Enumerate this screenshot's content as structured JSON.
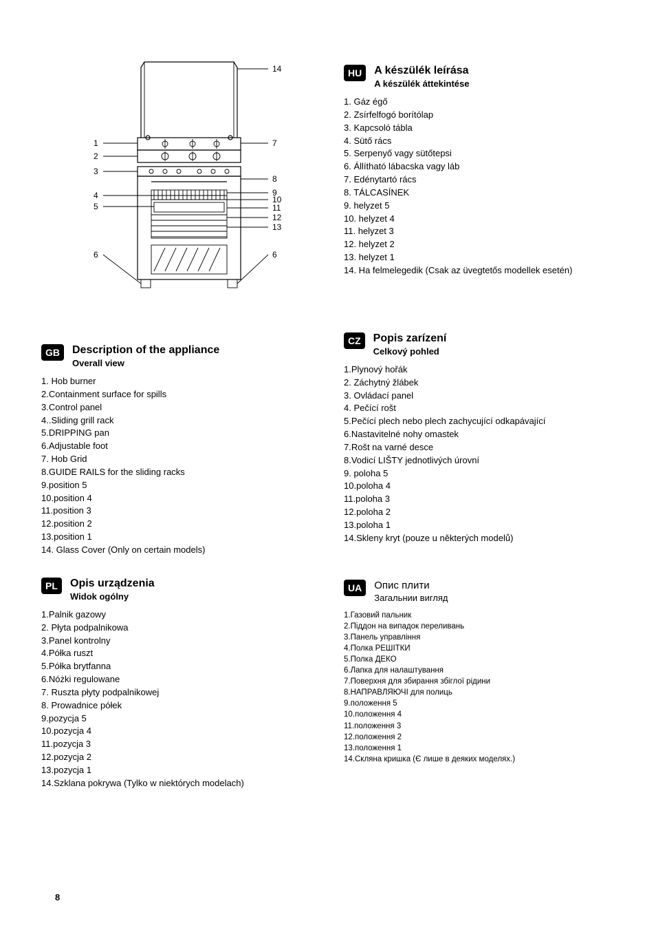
{
  "page_number": "8",
  "diagram": {
    "left_labels": [
      "1",
      "2",
      "3",
      "4",
      "5",
      "6"
    ],
    "right_labels_top": [
      "14"
    ],
    "right_labels": [
      "7",
      "8",
      "9",
      "10",
      "11",
      "12",
      "13",
      "6"
    ],
    "label_font_size": 12
  },
  "blocks": {
    "hu": {
      "badge": "HU",
      "title": "A készülék leírása",
      "subtitle": "A készülék áttekintése",
      "title_bold": true,
      "items": [
        "1. Gáz égő",
        "2. Zsírfelfogó borítólap",
        "3. Kapcsoló tábla",
        "4. Sütő rács",
        "5. Serpenyő vagy sütőtepsi",
        "6. Állítható lábacska vagy láb",
        "7. Edénytartó rács",
        "8. TÁLCASÍNEK",
        "9.  helyzet 5",
        "10. helyzet 4",
        "11. helyzet 3",
        "12.  helyzet 2",
        "13.  helyzet 1",
        "14.  Ha felmelegedik (Csak az üvegtetős modellek esetén)"
      ]
    },
    "gb": {
      "badge": "GB",
      "title": "Description of the appliance",
      "subtitle": "Overall view",
      "title_bold": true,
      "items": [
        "1. Hob burner",
        "2.Containment surface for spills",
        "3.Control panel",
        "4..Sliding grill rack",
        "5.DRIPPING pan",
        "6.Adjustable foot",
        "7. Hob Grid",
        "8.GUIDE RAILS for the sliding racks",
        "9.position 5",
        "10.position 4",
        "11.position 3",
        "12.position 2",
        "13.position 1",
        "14. Glass Cover (Only on certain models)"
      ]
    },
    "cz": {
      "badge": "CZ",
      "title": "Popis zarízení",
      "subtitle": "Celkový pohled",
      "title_bold": true,
      "items": [
        "1.Plynový hořák",
        "2. Záchytný žlábek",
        "3. Ovládací panel",
        "4. Pečící rošt",
        "5.Pečící plech nebo plech zachycující odkapávající",
        "6.Nastavitelné nohy omastek",
        "7.Rošt na varné desce",
        "8.Vodicí LIŠTY jednotlivých úrovní",
        "9. poloha 5",
        "10.poloha 4",
        "11.poloha 3",
        "12.poloha 2",
        "13.poloha 1",
        "14.Skleny kryt (pouze u některých modelů)"
      ]
    },
    "pl": {
      "badge": "PL",
      "title": "Opis urządzenia",
      "subtitle": "Widok ogólny",
      "title_bold": true,
      "items": [
        "1.Palnik gazowy",
        "2. Płyta podpalnikowa",
        "3.Panel kontrolny",
        "4.Półka ruszt",
        "5.Półka brytfanna",
        "6.Nóżki regulowane",
        "7. Ruszta płyty podpalnikowej",
        "8. Prowadnice półek",
        "9.pozycja 5",
        "10.pozycja 4",
        "11.pozycja 3",
        "12.pozycja 2",
        "13.pozycja 1",
        "14.Szklana pokrywa (Tylko w niektórych modelach)"
      ]
    },
    "ua": {
      "badge": "UA",
      "title": "Опис плити",
      "subtitle": "Загальнии вигляд",
      "title_bold": false,
      "small": true,
      "items": [
        "1.Газовий пальник",
        "2.Пiддон на випадок переливань",
        "3.Панель управління",
        "4.Полка РЕШІТКИ",
        "5.Полка ДЕКО",
        "6.Лапка для налаштування",
        "7.Поверхня для збирання збіглої рідини",
        "8.НАПРАВЛЯЮЧІ для полиць",
        "9.положення 5",
        "10.положення 4",
        "11.положення 3",
        "12.положення 2",
        "13.положення 1",
        "14.Скляна кришка (Є лише в деяких моделях.)"
      ]
    }
  }
}
